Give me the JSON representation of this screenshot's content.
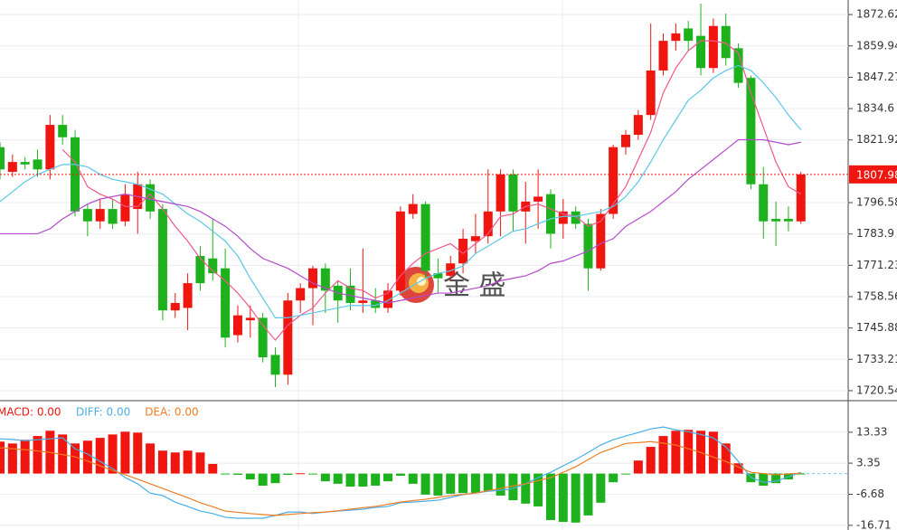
{
  "chart_data": [
    {
      "type": "candlestick",
      "up_color": "#f0150f",
      "down_color": "#1db21d",
      "grid": true,
      "ylim": [
        1716.5,
        1878.5
      ],
      "yticks": [
        1872.62,
        1859.94,
        1847.27,
        1834.6,
        1821.92,
        1796.58,
        1783.9,
        1771.23,
        1758.56,
        1745.88,
        1733.21,
        1720.54
      ],
      "last_price": 1807.98,
      "last_price_color": "#f0150f",
      "watermark": "金 盛",
      "open": [
        1819,
        1809,
        1813,
        1814,
        1810,
        1828,
        1823,
        1794,
        1789,
        1794,
        1789,
        1794,
        1804,
        1794,
        1753,
        1754,
        1775,
        1774,
        1770,
        1743,
        1749,
        1750,
        1735,
        1727,
        1757,
        1762,
        1770,
        1763,
        1763,
        1756,
        1757,
        1754,
        1761,
        1792,
        1796,
        1768,
        1767,
        1772,
        1781,
        1783,
        1793,
        1808,
        1793,
        1797,
        1800,
        1788,
        1793,
        1788,
        1770,
        1792,
        1819,
        1824,
        1832,
        1850,
        1862,
        1867,
        1864,
        1851,
        1868,
        1859,
        1847,
        1804,
        1790,
        1790,
        1789
      ],
      "close": [
        1810,
        1813,
        1812,
        1810,
        1828,
        1823,
        1793,
        1789,
        1794,
        1788,
        1800,
        1804,
        1793,
        1753,
        1756,
        1764,
        1764,
        1768,
        1742,
        1751,
        1750,
        1734,
        1727,
        1757,
        1762,
        1770,
        1761,
        1757,
        1756,
        1757,
        1754,
        1761,
        1793,
        1796,
        1769,
        1766,
        1772,
        1782,
        1783,
        1793,
        1808,
        1793,
        1797,
        1799,
        1784,
        1793,
        1788,
        1770,
        1792,
        1819,
        1824,
        1832,
        1850,
        1862,
        1865,
        1862,
        1851,
        1868,
        1855,
        1845,
        1804,
        1789,
        1789,
        1789,
        1807.98
      ],
      "high": [
        1821,
        1816,
        1815,
        1818,
        1832,
        1832,
        1826,
        1796,
        1798,
        1798,
        1804,
        1809,
        1806,
        1796,
        1760,
        1768,
        1779,
        1790,
        1778,
        1755,
        1755,
        1752,
        1738,
        1760,
        1764,
        1771,
        1772,
        1765,
        1770,
        1778,
        1762,
        1764,
        1795,
        1800,
        1797,
        1774,
        1775,
        1786,
        1792,
        1810,
        1810,
        1810,
        1805,
        1810,
        1802,
        1798,
        1795,
        1790,
        1794,
        1820,
        1826,
        1834,
        1869,
        1865,
        1869,
        1870,
        1877,
        1871,
        1873,
        1861,
        1848,
        1811,
        1797,
        1795,
        1809
      ],
      "low": [
        1806,
        1807,
        1810,
        1807,
        1806,
        1820,
        1791,
        1783,
        1786,
        1786,
        1787,
        1784,
        1790,
        1749,
        1750,
        1745,
        1761,
        1765,
        1738,
        1740,
        1742,
        1732,
        1722,
        1723,
        1752,
        1747,
        1752,
        1748,
        1753,
        1752,
        1752,
        1752,
        1759,
        1790,
        1766,
        1760,
        1765,
        1768,
        1776,
        1780,
        1783,
        1785,
        1780,
        1786,
        1778,
        1782,
        1786,
        1761,
        1769,
        1790,
        1816,
        1822,
        1830,
        1848,
        1858,
        1858,
        1848,
        1849,
        1852,
        1843,
        1802,
        1782,
        1779,
        1785,
        1788
      ],
      "series": [
        {
          "color": "#f0588a",
          "values": [
            null,
            null,
            null,
            null,
            null,
            1818,
            1813,
            1803,
            1800,
            1798,
            1795,
            1795,
            1800,
            1794,
            1787,
            1781,
            1774,
            1769,
            1765,
            1760,
            1754,
            1747,
            1741,
            1747,
            1751,
            1754,
            1760,
            1765,
            1762,
            1761,
            1758,
            1760,
            1767,
            1772,
            1776,
            1778,
            1780,
            1776,
            1780,
            1784,
            1791,
            1792,
            1795,
            1796,
            1794,
            1792,
            1791,
            1787,
            1789,
            1796,
            1803,
            1814,
            1825,
            1841,
            1851,
            1858,
            1862,
            1862,
            1861,
            1857,
            1841,
            1827,
            1813,
            1803,
            1800
          ]
        },
        {
          "color": "#5cc8e6",
          "values": [
            1797,
            1801,
            1805,
            1808,
            1810,
            1812,
            1812,
            1811,
            1808,
            1806,
            1805,
            1804,
            1802,
            1800,
            1796,
            1792,
            1789,
            1785,
            1781,
            1775,
            1766,
            1758,
            1750,
            1750,
            1751,
            1752,
            1753,
            1754,
            1755,
            1755,
            1755,
            1757,
            1760,
            1763,
            1766,
            1768,
            1769,
            1771,
            1776,
            1779,
            1782,
            1785,
            1786,
            1788,
            1790,
            1791,
            1791,
            1792,
            1793,
            1795,
            1799,
            1805,
            1813,
            1822,
            1830,
            1838,
            1842,
            1847,
            1850,
            1852,
            1850,
            1845,
            1839,
            1832,
            1826
          ]
        },
        {
          "color": "#b44ccb",
          "values": [
            1784,
            1784,
            1784,
            1784,
            1786,
            1790,
            1793,
            1796,
            1798,
            1799,
            1800,
            1799,
            1798,
            1797,
            1796,
            1795,
            1793,
            1790,
            1787,
            1783,
            1778,
            1774,
            1772,
            1770,
            1767,
            1764,
            1762,
            1760,
            1759,
            1758,
            1757,
            1756,
            1757,
            1758,
            1759,
            1760,
            1760,
            1761,
            1762,
            1763,
            1765,
            1766,
            1767,
            1769,
            1772,
            1773,
            1775,
            1777,
            1780,
            1782,
            1787,
            1790,
            1793,
            1797,
            1801,
            1806,
            1810,
            1814,
            1818,
            1822,
            1822,
            1822,
            1821,
            1820,
            1821
          ]
        }
      ]
    },
    {
      "type": "macd",
      "grid": true,
      "ylim": [
        -18.2,
        23.5
      ],
      "yticks": [
        13.33,
        3.35,
        -6.68,
        -16.71
      ],
      "histogram": {
        "name": "MACD: 0.00",
        "up_color": "#f0150f",
        "down_color": "#1db21d",
        "values": [
          10.3,
          9.7,
          10.9,
          12.1,
          13.8,
          12.6,
          9.7,
          10.6,
          11.5,
          12.6,
          13.5,
          13.2,
          9.7,
          7.4,
          6.8,
          7.4,
          6.8,
          3.1,
          -0.1,
          -0.4,
          -1.9,
          -3.9,
          -3.1,
          -0.4,
          0.1,
          -0.1,
          -2.5,
          -3.3,
          -4.2,
          -4.2,
          -3.9,
          -2.5,
          -0.7,
          -3.3,
          -6.8,
          -7.1,
          -6.5,
          -6.3,
          -6.3,
          -5.7,
          -7.1,
          -8.6,
          -9.7,
          -10.6,
          -15.0,
          -15.6,
          -15.8,
          -13.5,
          -9.4,
          -2.8,
          -0.1,
          4.2,
          8.6,
          12.1,
          13.8,
          14.1,
          13.8,
          13.5,
          9.7,
          3.3,
          -2.8,
          -3.9,
          -3.1,
          -1.9,
          -0.1
        ]
      },
      "series": [
        {
          "name": "DIFF: 0.00",
          "color": "#4aaee6",
          "values": [
            11.2,
            11.0,
            10.6,
            10.9,
            11.2,
            11.5,
            8.0,
            6.3,
            3.9,
            1.6,
            -1.3,
            -3.3,
            -6.3,
            -7.1,
            -9.2,
            -10.6,
            -12.1,
            -12.9,
            -14.1,
            -14.4,
            -14.4,
            -14.4,
            -13.5,
            -12.4,
            -12.4,
            -12.9,
            -12.4,
            -12.1,
            -11.8,
            -11.5,
            -10.9,
            -10.6,
            -9.4,
            -9.2,
            -8.9,
            -8.6,
            -7.7,
            -6.8,
            -6.3,
            -5.7,
            -5.4,
            -4.8,
            -3.3,
            -1.3,
            0.4,
            2.5,
            4.5,
            6.8,
            9.2,
            10.9,
            12.1,
            13.2,
            14.4,
            15.0,
            14.1,
            13.5,
            12.6,
            11.5,
            8.6,
            3.9,
            -1.3,
            -2.8,
            -2.5,
            -1.0,
            0.4
          ]
        },
        {
          "name": "DEA: 0.00",
          "color": "#f07d22",
          "values": [
            8.3,
            8.0,
            7.7,
            7.3,
            6.8,
            6.1,
            5.4,
            4.0,
            2.5,
            1.0,
            -0.4,
            -1.8,
            -3.3,
            -4.8,
            -6.3,
            -7.8,
            -9.4,
            -10.7,
            -12.1,
            -12.5,
            -12.9,
            -13.2,
            -13.5,
            -13.2,
            -12.9,
            -12.6,
            -12.4,
            -12.0,
            -11.5,
            -11.0,
            -10.6,
            -9.9,
            -9.2,
            -8.7,
            -8.3,
            -7.7,
            -7.1,
            -6.7,
            -6.3,
            -5.5,
            -4.8,
            -4.0,
            -3.3,
            -2.3,
            -1.3,
            0.4,
            2.2,
            4.5,
            6.8,
            8.2,
            9.7,
            10.0,
            10.3,
            9.8,
            9.2,
            8.0,
            6.8,
            5.3,
            3.9,
            2.1,
            0.4,
            0.0,
            -0.4,
            -0.1,
            0.1
          ]
        }
      ]
    }
  ]
}
